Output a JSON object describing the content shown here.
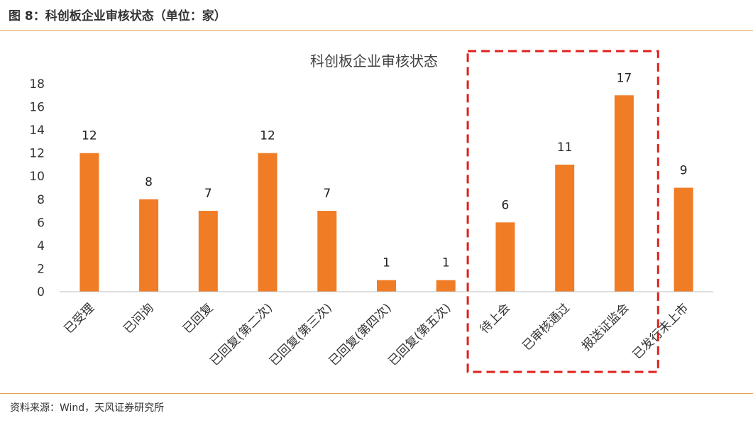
{
  "figure_title": "图 8：科创板企业审核状态（单位：家）",
  "source": "资料来源：Wind，天风证券研究所",
  "colors": {
    "bar": "#F07C26",
    "highlight_box": "#E0201C",
    "rule": "#E0A050",
    "axis": "#BFBFBF"
  },
  "chart_data": {
    "type": "bar",
    "title": "科创板企业审核状态",
    "xlabel": "",
    "ylabel": "",
    "categories": [
      "已受理",
      "已问询",
      "已回复",
      "已回复(第二次)",
      "已回复(第三次)",
      "已回复(第四次)",
      "已回复(第五次)",
      "待上会",
      "已审核通过",
      "报送证监会",
      "已发行未上市"
    ],
    "values": [
      12,
      8,
      7,
      12,
      7,
      1,
      1,
      6,
      11,
      17,
      9
    ],
    "ylim": [
      0,
      18
    ],
    "yticks": [
      0,
      2,
      4,
      6,
      8,
      10,
      12,
      14,
      16,
      18
    ],
    "grid": false,
    "legend": "none",
    "highlighted_categories": [
      "待上会",
      "已审核通过",
      "报送证监会"
    ]
  }
}
